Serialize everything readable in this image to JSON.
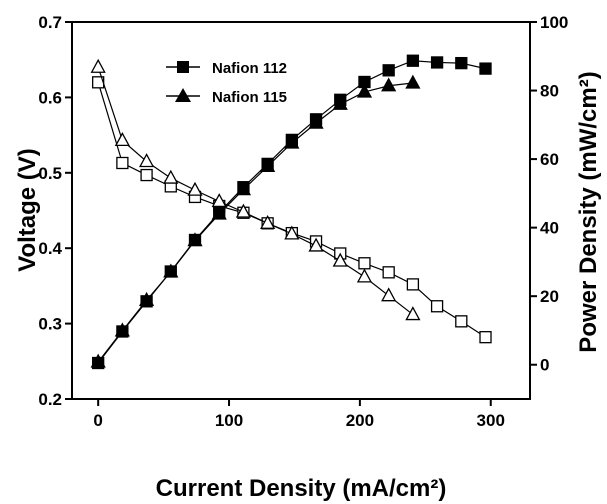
{
  "chart_data": {
    "type": "line",
    "title": "",
    "xlabel": "Current Density (mA/cm²)",
    "ylabel_left": "Voltage (V)",
    "ylabel_right": "Power Density (mW/cm²)",
    "xlim": [
      -20,
      330
    ],
    "ylim_left": [
      0.2,
      0.7
    ],
    "ylim_right": [
      -10,
      100
    ],
    "x_ticks": [
      0,
      100,
      200,
      300
    ],
    "y_left_ticks": [
      0.2,
      0.3,
      0.4,
      0.5,
      0.6,
      0.7
    ],
    "y_right_ticks": [
      0,
      20,
      40,
      60,
      80,
      100
    ],
    "legend": {
      "position": "top-left",
      "entries": [
        {
          "label": "Nafion 112",
          "marker": "square"
        },
        {
          "label": "Nafion 115",
          "marker": "triangle"
        }
      ]
    },
    "series": [
      {
        "name": "Nafion 112",
        "kind": "voltage",
        "axis": "left",
        "marker": "square",
        "filled": false,
        "x": [
          0,
          18.5,
          37,
          55.5,
          74,
          92.5,
          111,
          129.5,
          148,
          166.5,
          185,
          203.5,
          222,
          240.5,
          259,
          277.5,
          296
        ],
        "y": [
          0.62,
          0.513,
          0.497,
          0.482,
          0.468,
          0.456,
          0.447,
          0.433,
          0.42,
          0.409,
          0.393,
          0.38,
          0.368,
          0.352,
          0.323,
          0.303,
          0.282
        ]
      },
      {
        "name": "Nafion 115",
        "kind": "voltage",
        "axis": "left",
        "marker": "triangle",
        "filled": false,
        "x": [
          0,
          18.5,
          37,
          55.5,
          74,
          92.5,
          111,
          129.5,
          148,
          166.5,
          185,
          203.5,
          222,
          240.5
        ],
        "y": [
          0.64,
          0.543,
          0.515,
          0.493,
          0.477,
          0.462,
          0.448,
          0.433,
          0.419,
          0.403,
          0.383,
          0.362,
          0.337,
          0.312
        ]
      },
      {
        "name": "Nafion 112",
        "kind": "power",
        "axis": "right",
        "marker": "square",
        "filled": true,
        "x": [
          0,
          18.5,
          37,
          55.5,
          74,
          92.5,
          111,
          129.5,
          148,
          166.5,
          185,
          203.5,
          222,
          240.5,
          259,
          277.5,
          296
        ],
        "y": [
          0.5,
          9.7,
          18.5,
          27.2,
          36.4,
          44.4,
          51.8,
          58.6,
          65.6,
          71.6,
          77.3,
          82.5,
          85.9,
          88.7,
          88.2,
          88.0,
          86.4
        ]
      },
      {
        "name": "Nafion 115",
        "kind": "power",
        "axis": "right",
        "marker": "triangle",
        "filled": true,
        "x": [
          0,
          18.5,
          37,
          55.5,
          74,
          92.5,
          111,
          129.5,
          148,
          166.5,
          185,
          203.5,
          222,
          240.5
        ],
        "y": [
          0.8,
          9.9,
          18.8,
          27.1,
          36.2,
          44.0,
          51.1,
          57.9,
          64.7,
          70.5,
          76.0,
          79.6,
          81.4,
          82.2
        ]
      }
    ]
  }
}
